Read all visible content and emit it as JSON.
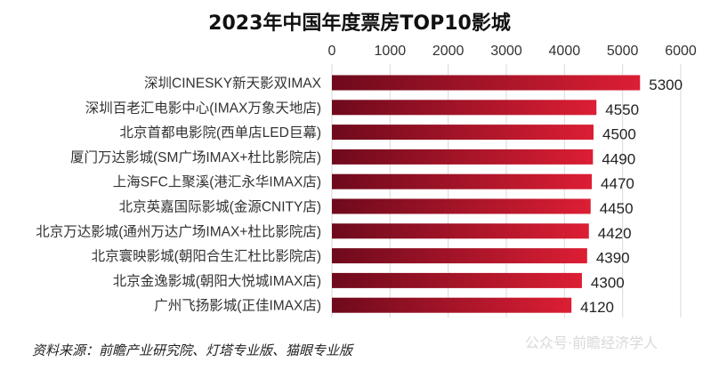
{
  "chart_data": {
    "type": "bar",
    "orientation": "horizontal",
    "title": "2023年中国年度票房TOP10影城",
    "categories": [
      "深圳CINESKY新天影双IMAX",
      "深圳百老汇电影中心(IMAX万象天地店)",
      "北京首都电影院(西单店LED巨幕)",
      "厦门万达影城(SM广场IMAX+杜比影院店)",
      "上海SFC上聚溪(港汇永华IMAX店)",
      "北京英嘉国际影城(金源CNITY店)",
      "北京万达影城(通州万达广场IMAX+杜比影院店)",
      "北京寰映影城(朝阳合生汇杜比影院店)",
      "北京金逸影城(朝阳大悦城IMAX店)",
      "广州飞扬影城(正佳IMAX店)"
    ],
    "values": [
      5300,
      4550,
      4500,
      4490,
      4470,
      4450,
      4420,
      4390,
      4300,
      4120
    ],
    "value_labels": [
      "5300",
      "4550",
      "4500",
      "4490",
      "4470",
      "4450",
      "4420",
      "4390",
      "4300",
      "4120"
    ],
    "xlim": [
      0,
      6000
    ],
    "x_ticks": [
      "0",
      "1000",
      "2000",
      "3000",
      "4000",
      "5000",
      "6000"
    ],
    "x_tick_values": [
      0,
      1000,
      2000,
      3000,
      4000,
      5000,
      6000
    ],
    "axis_position": "top",
    "grid": true,
    "xlabel": "",
    "ylabel": "",
    "bar_color_dark": "#6e0a1c",
    "bar_color_light": "#dc1e34"
  },
  "source_note": "资料来源：前瞻产业研究院、灯塔专业版、猫眼专业版",
  "watermark": "公众号·前瞻经济学人"
}
